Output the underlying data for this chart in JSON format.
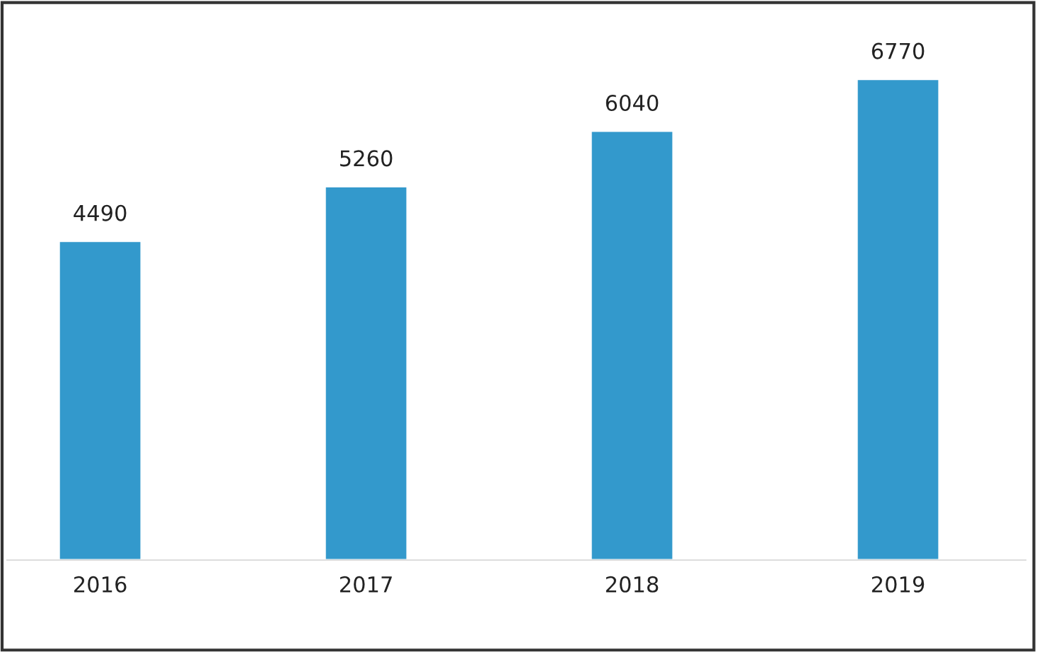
{
  "chart_data": {
    "type": "bar",
    "categories": [
      "2016",
      "2017",
      "2018",
      "2019"
    ],
    "values": [
      4490,
      5260,
      6040,
      6770
    ],
    "color": "#3399cc",
    "data_labels": true,
    "grid": false,
    "legend": false
  }
}
